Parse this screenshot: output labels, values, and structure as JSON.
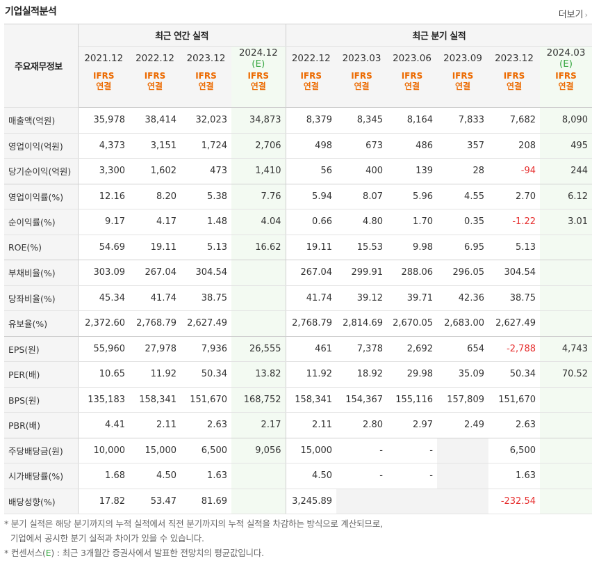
{
  "header": {
    "title": "기업실적분석",
    "more_label": "더보기"
  },
  "table": {
    "row_header_label": "주요재무정보",
    "groups": [
      "최근 연간 실적",
      "최근 분기 실적"
    ],
    "columns": [
      {
        "period": "2021.12",
        "estimate": "",
        "ifrs": "IFRS",
        "basis": "연결"
      },
      {
        "period": "2022.12",
        "estimate": "",
        "ifrs": "IFRS",
        "basis": "연결"
      },
      {
        "period": "2023.12",
        "estimate": "",
        "ifrs": "IFRS",
        "basis": "연결"
      },
      {
        "period": "2024.12",
        "estimate": "(E)",
        "ifrs": "IFRS",
        "basis": "연결"
      },
      {
        "period": "2022.12",
        "estimate": "",
        "ifrs": "IFRS",
        "basis": "연결"
      },
      {
        "period": "2023.03",
        "estimate": "",
        "ifrs": "IFRS",
        "basis": "연결"
      },
      {
        "period": "2023.06",
        "estimate": "",
        "ifrs": "IFRS",
        "basis": "연결"
      },
      {
        "period": "2023.09",
        "estimate": "",
        "ifrs": "IFRS",
        "basis": "연결"
      },
      {
        "period": "2023.12",
        "estimate": "",
        "ifrs": "IFRS",
        "basis": "연결"
      },
      {
        "period": "2024.03",
        "estimate": "(E)",
        "ifrs": "IFRS",
        "basis": "연결"
      }
    ],
    "rows": [
      {
        "label": "매출액(억원)",
        "values": [
          "35,978",
          "38,414",
          "32,023",
          "34,873",
          "8,379",
          "8,345",
          "8,164",
          "7,833",
          "7,682",
          "8,090"
        ]
      },
      {
        "label": "영업이익(억원)",
        "values": [
          "4,373",
          "3,151",
          "1,724",
          "2,706",
          "498",
          "673",
          "486",
          "357",
          "208",
          "495"
        ]
      },
      {
        "label": "당기순이익(억원)",
        "values": [
          "3,300",
          "1,602",
          "473",
          "1,410",
          "56",
          "400",
          "139",
          "28",
          "-94",
          "244"
        ]
      },
      {
        "label": "영업이익률(%)",
        "values": [
          "12.16",
          "8.20",
          "5.38",
          "7.76",
          "5.94",
          "8.07",
          "5.96",
          "4.55",
          "2.70",
          "6.12"
        ]
      },
      {
        "label": "순이익률(%)",
        "values": [
          "9.17",
          "4.17",
          "1.48",
          "4.04",
          "0.66",
          "4.80",
          "1.70",
          "0.35",
          "-1.22",
          "3.01"
        ]
      },
      {
        "label": "ROE(%)",
        "values": [
          "54.69",
          "19.11",
          "5.13",
          "16.62",
          "19.11",
          "15.53",
          "9.98",
          "6.95",
          "5.13",
          ""
        ]
      },
      {
        "label": "부채비율(%)",
        "values": [
          "303.09",
          "267.04",
          "304.54",
          "",
          "267.04",
          "299.91",
          "288.06",
          "296.05",
          "304.54",
          ""
        ]
      },
      {
        "label": "당좌비율(%)",
        "values": [
          "45.34",
          "41.74",
          "38.75",
          "",
          "41.74",
          "39.12",
          "39.71",
          "42.36",
          "38.75",
          ""
        ]
      },
      {
        "label": "유보율(%)",
        "values": [
          "2,372.60",
          "2,768.79",
          "2,627.49",
          "",
          "2,768.79",
          "2,814.69",
          "2,670.05",
          "2,683.00",
          "2,627.49",
          ""
        ]
      },
      {
        "label": "EPS(원)",
        "values": [
          "55,960",
          "27,978",
          "7,936",
          "26,555",
          "461",
          "7,378",
          "2,692",
          "654",
          "-2,788",
          "4,743"
        ]
      },
      {
        "label": "PER(배)",
        "values": [
          "10.65",
          "11.92",
          "50.34",
          "13.82",
          "11.92",
          "18.92",
          "29.98",
          "35.09",
          "50.34",
          "70.52"
        ]
      },
      {
        "label": "BPS(원)",
        "values": [
          "135,183",
          "158,341",
          "151,670",
          "168,752",
          "158,341",
          "154,367",
          "155,116",
          "157,809",
          "151,670",
          ""
        ]
      },
      {
        "label": "PBR(배)",
        "values": [
          "4.41",
          "2.11",
          "2.63",
          "2.17",
          "2.11",
          "2.80",
          "2.97",
          "2.49",
          "2.63",
          ""
        ]
      },
      {
        "label": "주당배당금(원)",
        "values": [
          "10,000",
          "15,000",
          "6,500",
          "9,056",
          "15,000",
          "-",
          "-",
          "",
          "6,500",
          ""
        ]
      },
      {
        "label": "시가배당률(%)",
        "values": [
          "1.68",
          "4.50",
          "1.63",
          "",
          "4.50",
          "-",
          "-",
          "",
          "1.63",
          ""
        ]
      },
      {
        "label": "배당성향(%)",
        "values": [
          "17.82",
          "53.47",
          "81.69",
          "",
          "3,245.89",
          "",
          "",
          "",
          "-232.54",
          ""
        ]
      }
    ],
    "empty_shaded_cells": [
      [
        13,
        7
      ],
      [
        14,
        7
      ],
      [
        15,
        5
      ],
      [
        15,
        6
      ],
      [
        15,
        7
      ]
    ]
  },
  "notes": {
    "line1": "* 분기 실적은 해당 분기까지의 누적 실적에서 직전 분기까지의 누적 실적을 차감하는 방식으로 계산되므로,",
    "line2": "기업에서 공시한 분기 실적과 차이가 있을 수 있습니다.",
    "line3_prefix": "* 컨센서스(",
    "line3_e": "E",
    "line3_suffix": ") : 최근 3개월간 증권사에서 발표한 전망치의 평균값입니다."
  },
  "colors": {
    "estimate_green": "#3aa844",
    "ifrs_orange": "#ec6a00",
    "negative_red": "#e62e2e",
    "estimate_bg": "#f3faf2"
  }
}
